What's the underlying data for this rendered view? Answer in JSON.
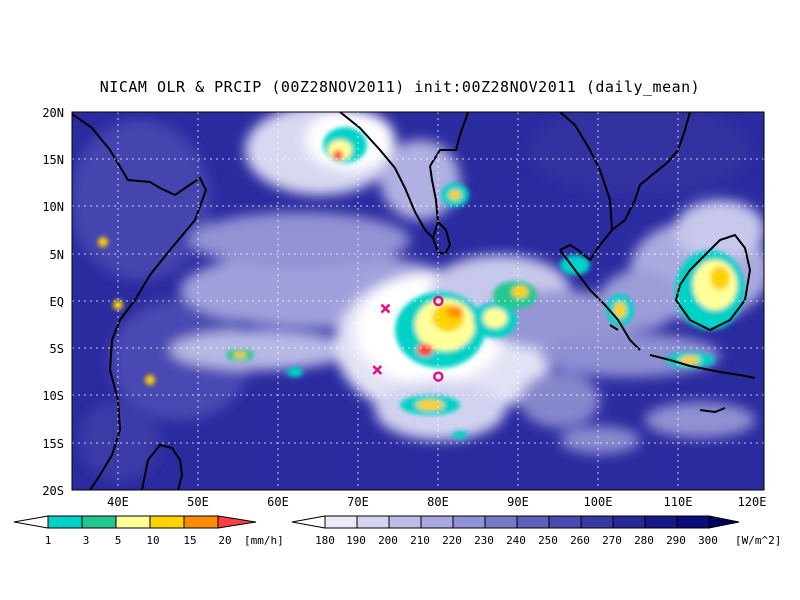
{
  "title": "NICAM OLR & PRCIP (00Z28NOV2011) init:00Z28NOV2011 (daily_mean)",
  "lat_ticks": [
    "20N",
    "15N",
    "10N",
    "5N",
    "EQ",
    "5S",
    "10S",
    "15S",
    "20S"
  ],
  "lon_ticks": [
    "40E",
    "50E",
    "60E",
    "70E",
    "80E",
    "90E",
    "100E",
    "110E",
    "120E"
  ],
  "precip_colorbar": {
    "labels": [
      "1",
      "3",
      "5",
      "10",
      "15",
      "20"
    ],
    "unit": "[mm/h]",
    "colors": [
      "#00d2c8",
      "#20c890",
      "#ffff99",
      "#ffd200",
      "#ff8c00",
      "#ff4040"
    ]
  },
  "olr_colorbar": {
    "labels": [
      "180",
      "190",
      "200",
      "210",
      "220",
      "230",
      "240",
      "250",
      "260",
      "270",
      "280",
      "290",
      "300"
    ],
    "unit": "[W/m^2]",
    "colors": [
      "#ffffff",
      "#eaeaf8",
      "#d4d4f0",
      "#bdbde8",
      "#a8a8e0",
      "#9090d4",
      "#7878c8",
      "#6060bc",
      "#4a4ab0",
      "#3838a4",
      "#282898",
      "#18188a",
      "#0c0c7a",
      "#000060"
    ]
  },
  "markers": [
    {
      "type": "circle",
      "lon": 80,
      "lat": 0,
      "color": "#e0108c"
    },
    {
      "type": "circle",
      "lon": 80,
      "lat": -8,
      "color": "#e0108c"
    },
    {
      "type": "cross",
      "lon": 73.5,
      "lat": -0.8,
      "color": "#e0108c"
    },
    {
      "type": "cross",
      "lon": 72.5,
      "lat": -7.3,
      "color": "#e0108c"
    }
  ]
}
